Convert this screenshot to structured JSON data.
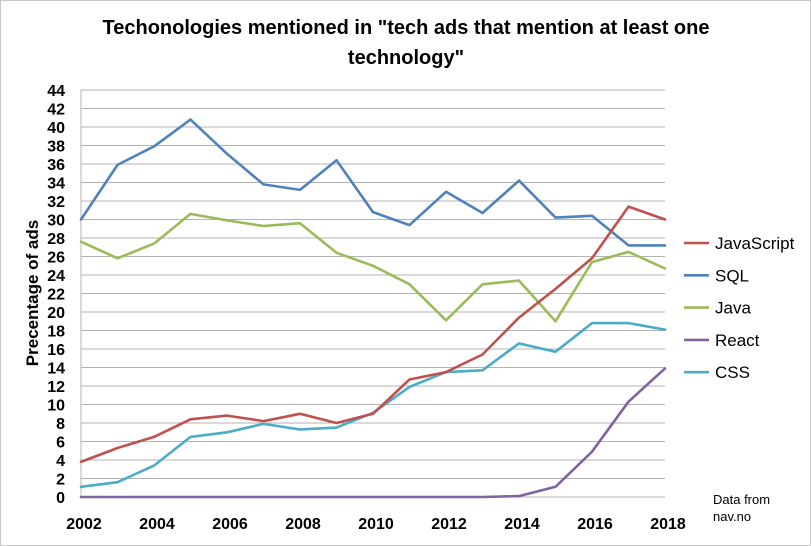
{
  "chart_data": {
    "type": "line",
    "title_lines": [
      "Techonologies mentioned in \"tech ads that mention at least one",
      "technology\""
    ],
    "ylabel": "Precentage of ads",
    "xlabel": "",
    "x": [
      2002,
      2003,
      2004,
      2005,
      2006,
      2007,
      2008,
      2009,
      2010,
      2011,
      2012,
      2013,
      2014,
      2015,
      2016,
      2017,
      2018
    ],
    "x_tick_labels": [
      "2002",
      "2004",
      "2006",
      "2008",
      "2010",
      "2012",
      "2014",
      "2016",
      "2018"
    ],
    "y_tick_labels": [
      "0",
      "2",
      "4",
      "6",
      "8",
      "10",
      "12",
      "14",
      "16",
      "18",
      "20",
      "22",
      "24",
      "26",
      "28",
      "30",
      "32",
      "34",
      "36",
      "38",
      "40",
      "42",
      "44"
    ],
    "xlim": [
      2002,
      2018
    ],
    "ylim": [
      0,
      44
    ],
    "grid": true,
    "legend_position": "right",
    "series": [
      {
        "name": "JavaScript",
        "color": "#c0504d",
        "values": [
          3.8,
          5.3,
          6.5,
          8.4,
          8.8,
          8.2,
          9.0,
          8.0,
          9.0,
          12.7,
          13.5,
          15.4,
          19.4,
          22.5,
          25.8,
          31.4,
          30.0
        ]
      },
      {
        "name": "SQL",
        "color": "#4f81bd",
        "values": [
          30.0,
          35.9,
          37.9,
          40.8,
          37.1,
          33.8,
          33.2,
          36.4,
          30.8,
          29.4,
          33.0,
          30.7,
          34.2,
          30.2,
          30.4,
          27.2,
          27.2
        ]
      },
      {
        "name": "Java",
        "color": "#9bbb59",
        "values": [
          27.6,
          25.8,
          27.4,
          30.6,
          29.9,
          29.3,
          29.6,
          26.4,
          25.0,
          23.0,
          19.1,
          23.0,
          23.4,
          19.0,
          25.4,
          26.5,
          24.7
        ]
      },
      {
        "name": "React",
        "color": "#8064a2",
        "values": [
          0,
          0,
          0,
          0,
          0,
          0,
          0,
          0,
          0,
          0,
          0,
          0,
          0.1,
          1.1,
          4.9,
          10.3,
          13.9
        ]
      },
      {
        "name": "CSS",
        "color": "#4bacc6",
        "values": [
          1.1,
          1.6,
          3.4,
          6.5,
          7.0,
          7.9,
          7.3,
          7.5,
          9.1,
          11.9,
          13.5,
          13.7,
          16.6,
          15.7,
          18.8,
          18.8,
          18.1
        ]
      }
    ],
    "annotation_lines": [
      "Data from",
      "nav.no"
    ]
  }
}
